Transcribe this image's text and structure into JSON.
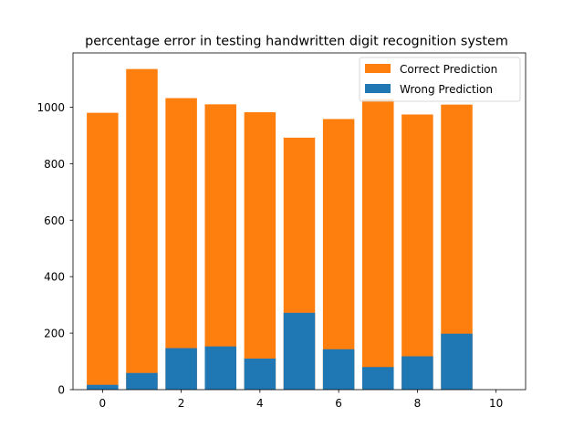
{
  "chart_data": {
    "type": "bar",
    "stacked": true,
    "title": "percentage error in testing handwritten digit recognition system",
    "xlabel": "",
    "ylabel": "",
    "x": [
      0,
      1,
      2,
      3,
      4,
      5,
      6,
      7,
      8,
      9
    ],
    "xlim": [
      -0.75,
      10.75
    ],
    "ylim": [
      0,
      1192
    ],
    "xticks": [
      0,
      2,
      4,
      6,
      8,
      10
    ],
    "yticks": [
      0,
      200,
      400,
      600,
      800,
      1000
    ],
    "series": [
      {
        "name": "Wrong Prediction",
        "color": "#1f77b4",
        "values": [
          17,
          59,
          147,
          153,
          110,
          272,
          143,
          80,
          118,
          198
        ]
      },
      {
        "name": "Correct Prediction",
        "color": "#ff7f0e",
        "total_values": [
          980,
          1135,
          1032,
          1010,
          982,
          892,
          958,
          1028,
          974,
          1009
        ]
      }
    ],
    "legend": {
      "placement": "top-right",
      "entries": [
        "Correct Prediction",
        "Wrong Prediction"
      ]
    },
    "grid": false
  }
}
